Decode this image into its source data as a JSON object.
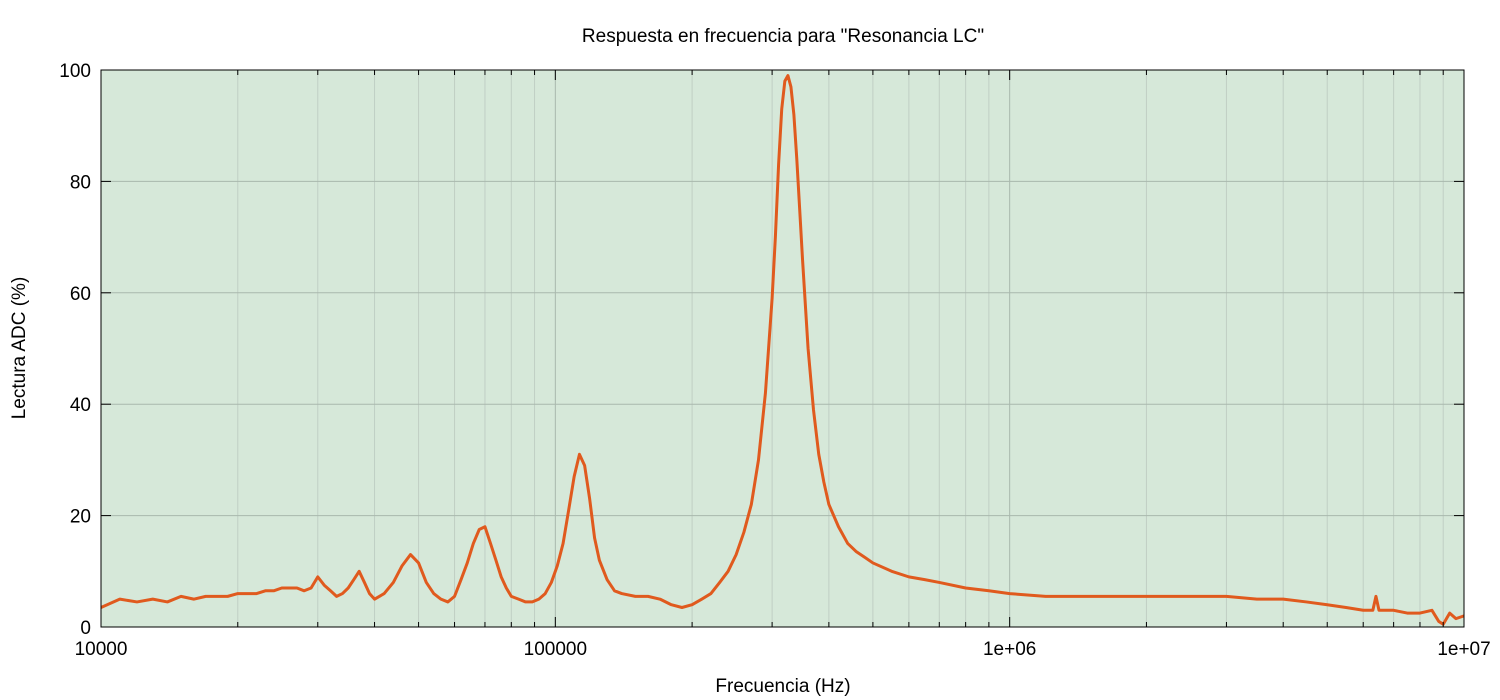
{
  "chart_data": {
    "type": "line",
    "title": "Respuesta en frecuencia para \"Resonancia LC\"",
    "xlabel": "Frecuencia (Hz)",
    "ylabel": "Lectura ADC (%)",
    "x_scale": "log",
    "xlim": [
      10000,
      10000000
    ],
    "ylim": [
      0,
      100
    ],
    "grid": true,
    "legend": "none",
    "colors": {
      "plot_background": "#d6e8d9",
      "line": "#e05a1e",
      "grid_major": "#a9b8ad",
      "grid_minor": "#c0cfc4"
    },
    "x_ticks": [
      {
        "value": 10000,
        "label": "10000"
      },
      {
        "value": 100000,
        "label": "100000"
      },
      {
        "value": 1000000,
        "label": "1e+06"
      },
      {
        "value": 10000000,
        "label": "1e+07"
      }
    ],
    "y_ticks": [
      {
        "value": 0,
        "label": "0"
      },
      {
        "value": 20,
        "label": "20"
      },
      {
        "value": 40,
        "label": "40"
      },
      {
        "value": 60,
        "label": "60"
      },
      {
        "value": 80,
        "label": "80"
      },
      {
        "value": 100,
        "label": "100"
      }
    ],
    "series": [
      {
        "x": [
          10000,
          11000,
          12000,
          13000,
          14000,
          15000,
          16000,
          17000,
          18000,
          19000,
          20000,
          21000,
          22000,
          23000,
          24000,
          25000,
          26000,
          27000,
          28000,
          29000,
          30000,
          31000,
          32000,
          33000,
          34000,
          35000,
          36000,
          37000,
          38000,
          39000,
          40000,
          42000,
          44000,
          46000,
          48000,
          50000,
          52000,
          54000,
          56000,
          58000,
          60000,
          62000,
          64000,
          66000,
          68000,
          70000,
          72000,
          74000,
          76000,
          78000,
          80000,
          83000,
          86000,
          89000,
          92000,
          95000,
          98000,
          101000,
          104000,
          107000,
          110000,
          113000,
          116000,
          119000,
          122000,
          125000,
          130000,
          135000,
          140000,
          150000,
          160000,
          170000,
          180000,
          190000,
          200000,
          210000,
          220000,
          230000,
          240000,
          250000,
          260000,
          270000,
          280000,
          290000,
          300000,
          305000,
          310000,
          315000,
          320000,
          325000,
          330000,
          335000,
          340000,
          345000,
          350000,
          360000,
          370000,
          380000,
          390000,
          400000,
          420000,
          440000,
          460000,
          480000,
          500000,
          550000,
          600000,
          650000,
          700000,
          800000,
          900000,
          1000000,
          1200000,
          1500000,
          2000000,
          2500000,
          3000000,
          3500000,
          4000000,
          4500000,
          5000000,
          5500000,
          6000000,
          6300000,
          6400000,
          6500000,
          7000000,
          7500000,
          8000000,
          8500000,
          8800000,
          9000000,
          9300000,
          9600000,
          10000000
        ],
        "y": [
          3.5,
          5,
          4.5,
          5,
          4.5,
          5.5,
          5,
          5.5,
          5.5,
          5.5,
          6,
          6,
          6,
          6.5,
          6.5,
          7,
          7,
          7,
          6.5,
          7,
          9,
          7.5,
          6.5,
          5.5,
          6,
          7,
          8.5,
          10,
          8,
          6,
          5,
          6,
          8,
          11,
          13,
          11.5,
          8,
          6,
          5,
          4.5,
          5.5,
          8.5,
          11.5,
          15,
          17.5,
          18,
          15,
          12,
          9,
          7,
          5.5,
          5,
          4.5,
          4.5,
          5,
          6,
          8,
          11,
          15,
          21,
          27,
          31,
          29,
          23,
          16,
          12,
          8.5,
          6.5,
          6,
          5.5,
          5.5,
          5,
          4,
          3.5,
          4,
          5,
          6,
          8,
          10,
          13,
          17,
          22,
          30,
          42,
          59,
          70,
          83,
          93,
          98,
          99,
          97,
          92,
          84,
          75,
          66,
          50,
          39,
          31,
          26,
          22,
          18,
          15,
          13.5,
          12.5,
          11.5,
          10,
          9,
          8.5,
          8,
          7,
          6.5,
          6,
          5.5,
          5.5,
          5.5,
          5.5,
          5.5,
          5,
          5,
          4.5,
          4,
          3.5,
          3,
          3,
          5.5,
          3,
          3,
          2.5,
          2.5,
          3,
          1,
          0.5,
          2.5,
          1.5,
          2
        ]
      }
    ]
  }
}
